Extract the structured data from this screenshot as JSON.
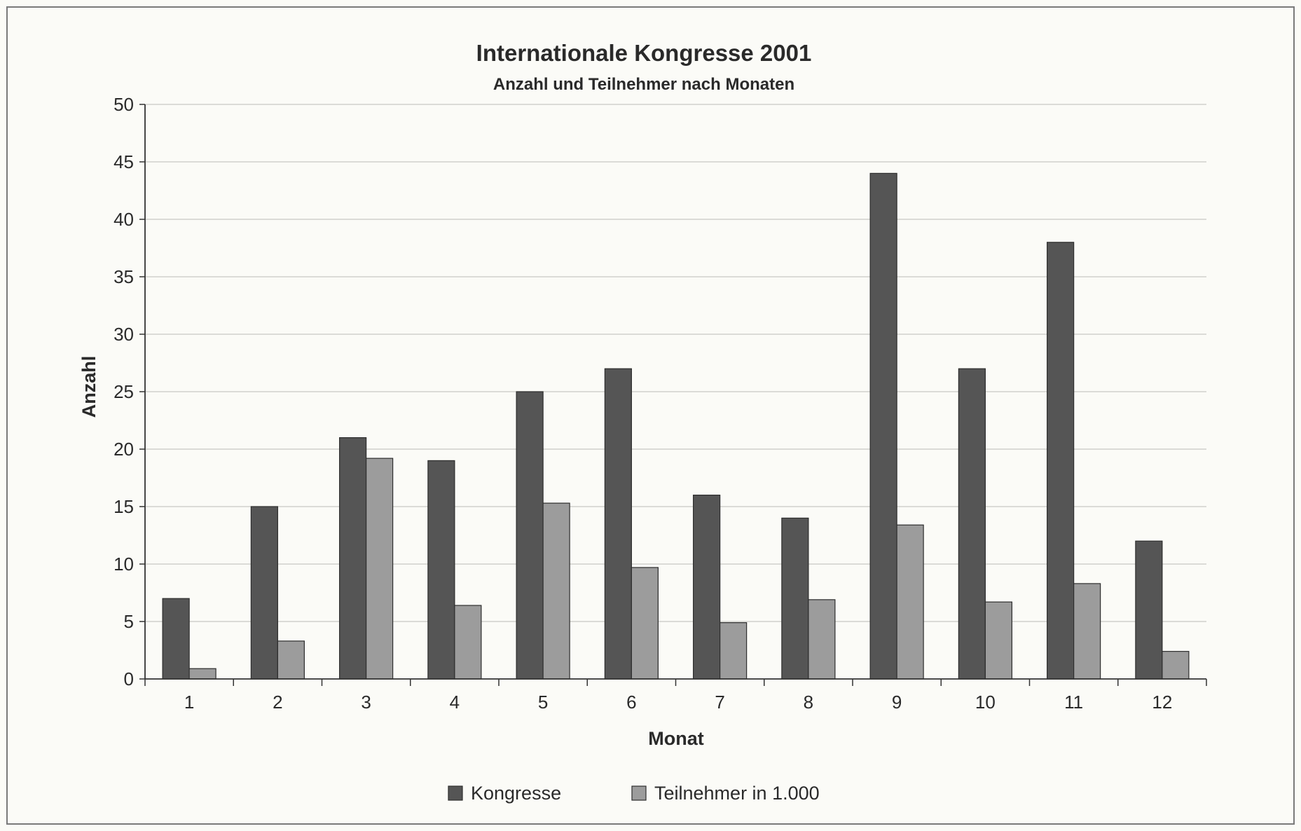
{
  "chart_data": {
    "type": "bar",
    "title": "Internationale Kongresse 2001",
    "subtitle": "Anzahl und Teilnehmer nach Monaten",
    "xlabel": "Monat",
    "ylabel": "Anzahl",
    "categories": [
      "1",
      "2",
      "3",
      "4",
      "5",
      "6",
      "7",
      "8",
      "9",
      "10",
      "11",
      "12"
    ],
    "series": [
      {
        "name": "Kongresse",
        "values": [
          7,
          15,
          21,
          19,
          25,
          27,
          16,
          14,
          44,
          27,
          38,
          12
        ],
        "color": "#555555"
      },
      {
        "name": "Teilnehmer in 1.000",
        "values": [
          0.9,
          3.3,
          19.2,
          6.4,
          15.3,
          9.7,
          4.9,
          6.9,
          13.4,
          6.7,
          8.3,
          2.4
        ],
        "color": "#9c9c9c"
      }
    ],
    "ylim": [
      0,
      50
    ],
    "yticks": [
      "0",
      "5",
      "10",
      "15",
      "20",
      "25",
      "30",
      "35",
      "40",
      "45",
      "50"
    ],
    "grid": true,
    "legend_position": "bottom"
  }
}
